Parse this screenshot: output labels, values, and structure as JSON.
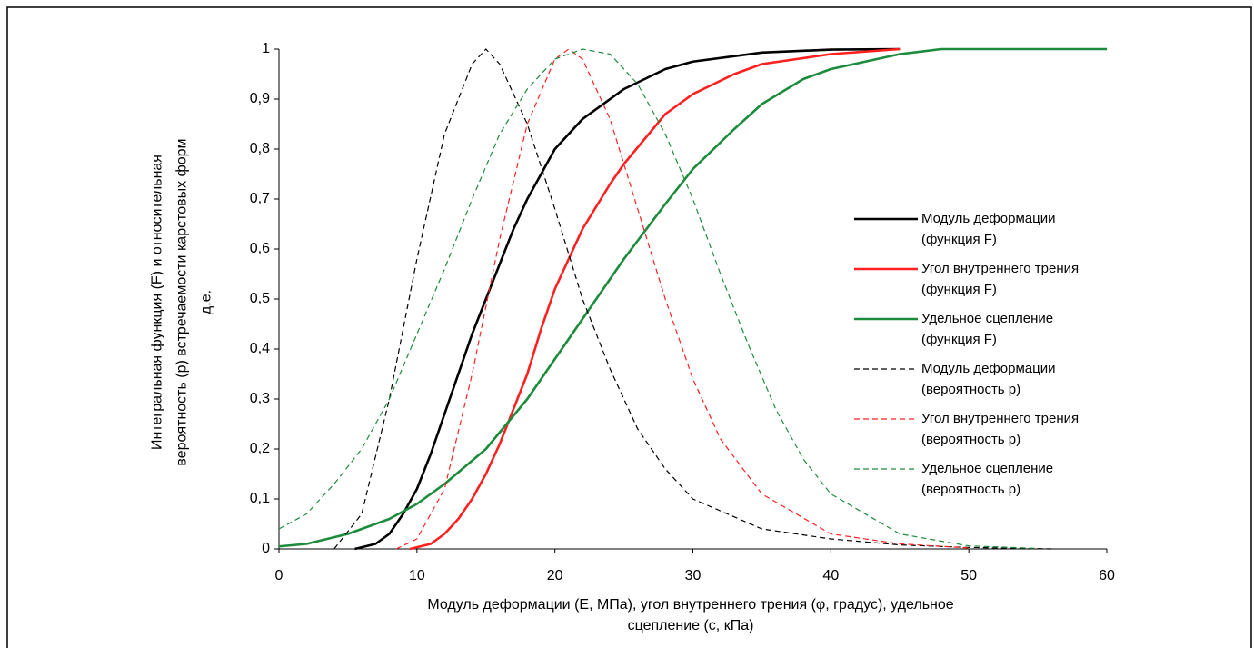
{
  "chart_data": {
    "type": "line",
    "x_label": "Модуль деформации (Е, МПа), угол внутреннего трения (φ, градус), удельное\nсцепление (с, кПа)",
    "y_label": "Интегральная функция (F) и относительная\nвероятность (р) встречаемости карстовых форм\nд.е.",
    "xlim": [
      0,
      60
    ],
    "xticks": [
      0,
      10,
      20,
      30,
      40,
      50,
      60
    ],
    "ylim": [
      0,
      1
    ],
    "yticks": [
      0,
      {
        "value": 0.1,
        "label": "0,1"
      },
      {
        "value": 0.2,
        "label": "0,2"
      },
      {
        "value": 0.3,
        "label": "0,3"
      },
      {
        "value": 0.4,
        "label": "0,4"
      },
      {
        "value": 0.5,
        "label": "0,5"
      },
      {
        "value": 0.6,
        "label": "0,6"
      },
      {
        "value": 0.7,
        "label": "0,7"
      },
      {
        "value": 0.8,
        "label": "0,8"
      },
      {
        "value": 0.9,
        "label": "0,9"
      },
      1
    ],
    "grid": false,
    "series": [
      {
        "name": "Модуль деформации\n(функция F)",
        "color": "#000000",
        "dash": false,
        "x": [
          5.5,
          7,
          8,
          9,
          10,
          11,
          12,
          13,
          14,
          15,
          16,
          17,
          18,
          20,
          22,
          25,
          28,
          30,
          35,
          40,
          45
        ],
        "values": [
          0,
          0.01,
          0.03,
          0.07,
          0.12,
          0.19,
          0.27,
          0.35,
          0.43,
          0.5,
          0.57,
          0.64,
          0.7,
          0.8,
          0.86,
          0.92,
          0.96,
          0.975,
          0.993,
          0.999,
          1
        ]
      },
      {
        "name": "Угол внутреннего трения\n(функция F)",
        "color": "#ff2020",
        "dash": false,
        "x": [
          9.5,
          11,
          12,
          13,
          14,
          15,
          16,
          17,
          18,
          19,
          20,
          22,
          24,
          25,
          28,
          30,
          33,
          35,
          40,
          45
        ],
        "values": [
          0,
          0.01,
          0.03,
          0.06,
          0.1,
          0.15,
          0.21,
          0.28,
          0.35,
          0.44,
          0.52,
          0.64,
          0.73,
          0.77,
          0.87,
          0.91,
          0.95,
          0.97,
          0.99,
          1
        ]
      },
      {
        "name": "Удельное сцепление\n(функция F)",
        "color": "#1c8c3c",
        "dash": false,
        "x": [
          0,
          2,
          5,
          8,
          10,
          12,
          15,
          18,
          20,
          22,
          25,
          28,
          30,
          33,
          35,
          38,
          40,
          45,
          48,
          60
        ],
        "values": [
          0.005,
          0.01,
          0.03,
          0.06,
          0.09,
          0.13,
          0.2,
          0.3,
          0.38,
          0.46,
          0.58,
          0.69,
          0.76,
          0.84,
          0.89,
          0.94,
          0.96,
          0.99,
          1,
          1
        ]
      },
      {
        "name": "Модуль деформации\n(вероятность р)",
        "color": "#000000",
        "dash": true,
        "x": [
          4,
          6,
          8,
          10,
          12,
          14,
          15,
          16,
          18,
          20,
          22,
          24,
          26,
          28,
          30,
          35,
          40,
          45,
          50,
          56
        ],
        "values": [
          0,
          0.07,
          0.3,
          0.58,
          0.83,
          0.97,
          1,
          0.97,
          0.85,
          0.68,
          0.5,
          0.36,
          0.24,
          0.16,
          0.1,
          0.04,
          0.02,
          0.008,
          0.003,
          0
        ]
      },
      {
        "name": "Угол внутреннего трения\n(вероятность р)",
        "color": "#ff2020",
        "dash": true,
        "x": [
          8.5,
          10,
          12,
          14,
          16,
          18,
          20,
          21,
          22,
          24,
          26,
          28,
          30,
          32,
          35,
          40,
          45,
          50
        ],
        "values": [
          0,
          0.02,
          0.12,
          0.35,
          0.62,
          0.85,
          0.98,
          1,
          0.98,
          0.86,
          0.68,
          0.5,
          0.34,
          0.22,
          0.11,
          0.03,
          0.01,
          0.002
        ]
      },
      {
        "name": "Удельное сцепление\n(вероятность р)",
        "color": "#1c8c3c",
        "dash": true,
        "x": [
          0,
          2,
          4,
          6,
          8,
          10,
          12,
          14,
          16,
          18,
          20,
          22,
          24,
          26,
          28,
          30,
          32,
          34,
          36,
          38,
          40,
          45,
          50,
          55
        ],
        "values": [
          0.04,
          0.07,
          0.13,
          0.2,
          0.3,
          0.43,
          0.56,
          0.7,
          0.83,
          0.92,
          0.98,
          1,
          0.99,
          0.93,
          0.83,
          0.7,
          0.55,
          0.41,
          0.28,
          0.18,
          0.11,
          0.03,
          0.006,
          0.001
        ]
      }
    ]
  }
}
